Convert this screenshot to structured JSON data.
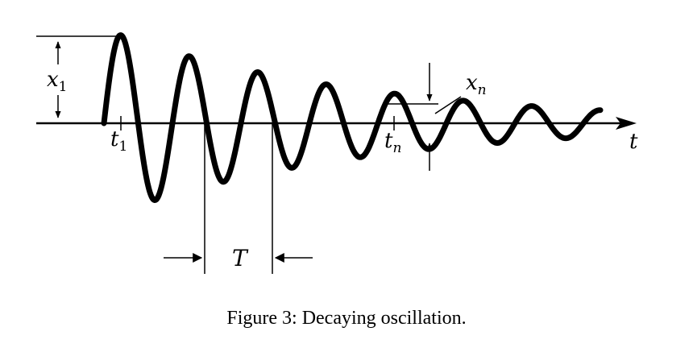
{
  "figure": {
    "caption": "Figure 3: Decaying oscillation.",
    "labels": {
      "x1": "x",
      "x1_sub": "1",
      "t1": "t",
      "t1_sub": "1",
      "tn": "t",
      "tn_sub": "n",
      "xn": "x",
      "xn_sub": "n",
      "T": "T",
      "t_axis": "t"
    },
    "colors": {
      "background": "#ffffff",
      "ink": "#000000"
    }
  }
}
